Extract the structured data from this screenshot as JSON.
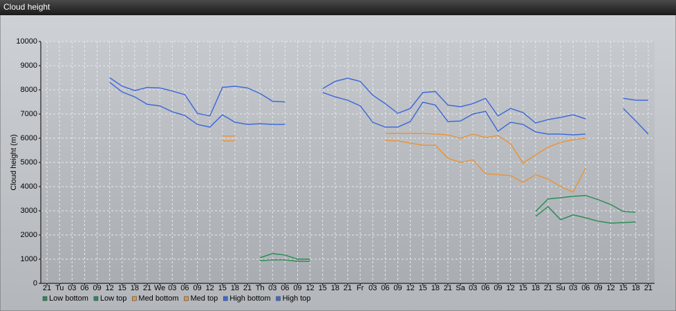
{
  "chart_data": {
    "type": "line",
    "title": "Cloud height",
    "ylabel": "Cloud height (m)",
    "categories": [
      "21",
      "Tu",
      "03",
      "06",
      "09",
      "12",
      "15",
      "18",
      "21",
      "We",
      "03",
      "06",
      "09",
      "12",
      "15",
      "18",
      "21",
      "Th",
      "03",
      "06",
      "09",
      "12",
      "15",
      "18",
      "21",
      "Fr",
      "03",
      "06",
      "09",
      "12",
      "15",
      "18",
      "21",
      "Sa",
      "03",
      "06",
      "09",
      "12",
      "15",
      "18",
      "21",
      "Su",
      "03",
      "06",
      "09",
      "12",
      "15",
      "18",
      "21"
    ],
    "ylim": [
      0,
      10000
    ],
    "yticks": [
      0,
      1000,
      2000,
      3000,
      4000,
      5000,
      6000,
      7000,
      8000,
      9000,
      10000
    ],
    "grid": true,
    "legend": "bottom",
    "series": [
      {
        "name": "Low bottom",
        "color": "#2e8b57",
        "values": [
          null,
          null,
          null,
          null,
          null,
          null,
          null,
          null,
          null,
          null,
          null,
          null,
          null,
          null,
          null,
          null,
          null,
          940,
          970,
          970,
          910,
          910,
          null,
          null,
          null,
          null,
          null,
          null,
          null,
          null,
          null,
          null,
          null,
          null,
          null,
          null,
          null,
          null,
          null,
          2770,
          3170,
          2630,
          2830,
          2710,
          2570,
          2490,
          2510,
          2540,
          null
        ]
      },
      {
        "name": "Low top",
        "color": "#2e8b57",
        "values": [
          null,
          null,
          null,
          null,
          null,
          null,
          null,
          null,
          null,
          null,
          null,
          null,
          null,
          null,
          null,
          null,
          null,
          1060,
          1230,
          1170,
          1000,
          1000,
          null,
          null,
          null,
          null,
          null,
          null,
          null,
          null,
          null,
          null,
          null,
          null,
          null,
          null,
          null,
          null,
          null,
          2970,
          3490,
          3540,
          3600,
          3630,
          3460,
          3260,
          2970,
          2940,
          null
        ]
      },
      {
        "name": "Med bottom",
        "color": "#e8943a",
        "values": [
          null,
          null,
          null,
          null,
          null,
          null,
          null,
          null,
          null,
          null,
          null,
          null,
          null,
          null,
          5890,
          5890,
          null,
          null,
          null,
          null,
          null,
          null,
          null,
          null,
          null,
          null,
          null,
          5910,
          5890,
          5800,
          5710,
          5710,
          5170,
          5000,
          5110,
          4540,
          4490,
          4460,
          4170,
          4490,
          4310,
          4000,
          3770,
          4770,
          null,
          null,
          null,
          null,
          null
        ]
      },
      {
        "name": "Med top",
        "color": "#e8943a",
        "values": [
          null,
          null,
          null,
          null,
          null,
          null,
          null,
          null,
          null,
          null,
          null,
          null,
          null,
          null,
          6090,
          6090,
          null,
          null,
          null,
          null,
          null,
          null,
          null,
          null,
          null,
          null,
          null,
          6200,
          6200,
          6200,
          6200,
          6170,
          6140,
          6000,
          6170,
          6030,
          6110,
          5770,
          4970,
          5310,
          5630,
          5830,
          5940,
          6000,
          null,
          null,
          null,
          null,
          null
        ]
      },
      {
        "name": "High bottom",
        "color": "#4169d8",
        "values": [
          null,
          null,
          null,
          null,
          null,
          8310,
          7910,
          7710,
          7400,
          7340,
          7090,
          6940,
          6570,
          6460,
          6970,
          6660,
          6570,
          6600,
          6570,
          6570,
          null,
          null,
          7890,
          7710,
          7570,
          7340,
          6660,
          6460,
          6460,
          6690,
          7490,
          7370,
          6690,
          6710,
          7000,
          7110,
          6290,
          6660,
          6570,
          6260,
          6170,
          6170,
          6140,
          6170,
          null,
          null,
          7230,
          6710,
          6170
        ]
      },
      {
        "name": "High top",
        "color": "#4169d8",
        "values": [
          null,
          null,
          null,
          null,
          null,
          8500,
          8150,
          7970,
          8100,
          8080,
          7950,
          7800,
          7030,
          6920,
          8100,
          8150,
          8080,
          7850,
          7530,
          7500,
          null,
          null,
          8050,
          8350,
          8480,
          8350,
          7780,
          7430,
          7030,
          7230,
          7890,
          7930,
          7370,
          7300,
          7430,
          7650,
          6920,
          7230,
          7060,
          6630,
          6770,
          6860,
          6970,
          6800,
          null,
          null,
          7650,
          7570,
          7570
        ]
      }
    ]
  }
}
